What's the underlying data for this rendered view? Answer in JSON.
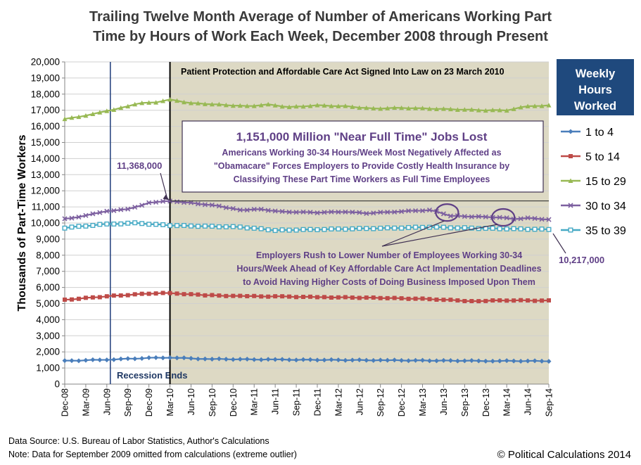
{
  "chart_data": {
    "type": "line",
    "title_line1": "Trailing Twelve Month Average of Number of Americans Working Part",
    "title_line2": "Time by Hours of Work Each Week, December 2008 through Present",
    "ylabel": "Thousands of Part-Time Workers",
    "ylim": [
      0,
      20000
    ],
    "ytick_step": 1000,
    "yticks": [
      "0",
      "1,000",
      "2,000",
      "3,000",
      "4,000",
      "5,000",
      "6,000",
      "7,000",
      "8,000",
      "9,000",
      "10,000",
      "11,000",
      "12,000",
      "13,000",
      "14,000",
      "15,000",
      "16,000",
      "17,000",
      "18,000",
      "19,000",
      "20,000"
    ],
    "xticks": [
      "Dec-08",
      "Mar-09",
      "Jun-09",
      "Sep-09",
      "Dec-09",
      "Mar-10",
      "Jun-10",
      "Sep-10",
      "Dec-10",
      "Mar-11",
      "Jun-11",
      "Sep-11",
      "Dec-11",
      "Mar-12",
      "Jun-12",
      "Sep-12",
      "Dec-12",
      "Mar-13",
      "Jun-13",
      "Sep-13",
      "Dec-13",
      "Mar-14",
      "Jun-14",
      "Sep-14"
    ],
    "months": 70,
    "legend_title": "Weekly Hours Worked",
    "series": [
      {
        "name": "1 to 4",
        "color": "#4a7ebb",
        "marker": "diamond",
        "anchors": [
          [
            0,
            1440
          ],
          [
            6,
            1520
          ],
          [
            12,
            1620
          ],
          [
            15,
            1650
          ],
          [
            20,
            1560
          ],
          [
            30,
            1520
          ],
          [
            45,
            1480
          ],
          [
            60,
            1440
          ],
          [
            69,
            1430
          ]
        ]
      },
      {
        "name": "5 to 14",
        "color": "#be4b48",
        "marker": "square",
        "anchors": [
          [
            0,
            5230
          ],
          [
            6,
            5450
          ],
          [
            12,
            5620
          ],
          [
            15,
            5650
          ],
          [
            20,
            5520
          ],
          [
            25,
            5460
          ],
          [
            30,
            5440
          ],
          [
            36,
            5400
          ],
          [
            45,
            5350
          ],
          [
            52,
            5280
          ],
          [
            58,
            5150
          ],
          [
            63,
            5200
          ],
          [
            69,
            5180
          ]
        ]
      },
      {
        "name": "15 to 29",
        "color": "#98b954",
        "marker": "triangle",
        "anchors": [
          [
            0,
            16450
          ],
          [
            4,
            16750
          ],
          [
            8,
            17150
          ],
          [
            11,
            17450
          ],
          [
            13,
            17500
          ],
          [
            15,
            17650
          ],
          [
            18,
            17450
          ],
          [
            22,
            17350
          ],
          [
            26,
            17250
          ],
          [
            29,
            17350
          ],
          [
            32,
            17200
          ],
          [
            36,
            17300
          ],
          [
            40,
            17250
          ],
          [
            44,
            17100
          ],
          [
            48,
            17150
          ],
          [
            52,
            17100
          ],
          [
            56,
            17050
          ],
          [
            60,
            17000
          ],
          [
            63,
            17000
          ],
          [
            66,
            17250
          ],
          [
            69,
            17300
          ]
        ]
      },
      {
        "name": "30 to 34",
        "color": "#7d60a0",
        "marker": "x",
        "anchors": [
          [
            0,
            10250
          ],
          [
            3,
            10450
          ],
          [
            6,
            10750
          ],
          [
            9,
            10850
          ],
          [
            12,
            11250
          ],
          [
            15,
            11368
          ],
          [
            18,
            11250
          ],
          [
            22,
            11050
          ],
          [
            25,
            10800
          ],
          [
            28,
            10850
          ],
          [
            31,
            10700
          ],
          [
            36,
            10650
          ],
          [
            40,
            10700
          ],
          [
            43,
            10600
          ],
          [
            47,
            10700
          ],
          [
            52,
            10800
          ],
          [
            53,
            10700
          ],
          [
            55,
            10450
          ],
          [
            58,
            10400
          ],
          [
            62,
            10350
          ],
          [
            64,
            10250
          ],
          [
            66,
            10300
          ],
          [
            68,
            10250
          ],
          [
            69,
            10217
          ]
        ]
      },
      {
        "name": "35 to 39",
        "color": "#46aac5",
        "marker": "open-square",
        "anchors": [
          [
            0,
            9700
          ],
          [
            5,
            9900
          ],
          [
            10,
            10000
          ],
          [
            15,
            9850
          ],
          [
            20,
            9800
          ],
          [
            25,
            9750
          ],
          [
            30,
            9550
          ],
          [
            36,
            9600
          ],
          [
            42,
            9650
          ],
          [
            48,
            9700
          ],
          [
            52,
            9750
          ],
          [
            56,
            9700
          ],
          [
            62,
            9650
          ],
          [
            69,
            9600
          ]
        ]
      }
    ],
    "recession_ends_label": "Recession Ends",
    "aca_signed_label": "Patient Protection and Affordable Care Act Signed Into Law on 23 March 2010",
    "callout_box": {
      "headline": "1,151,000 Million \"Near Full Time\" Jobs Lost",
      "body": [
        "Americans Working 30-34 Hours/Week Most Negatively Affected as",
        "\"Obamacare\" Forces Employers to Provide Costly Health Insurance by",
        "Classifying These Part Time Workers as Full Time Employees"
      ]
    },
    "peak_label": "11,368,000",
    "end_label": "10,217,000",
    "rush_annotation": [
      "Employers Rush to Lower Number of Employees Working 30-34",
      "Hours/Week Ahead of Key Affordable Care Act Implementation Deadlines",
      "to Avoid Having Higher Costs of Doing Business Imposed Upon Them"
    ]
  },
  "footer": {
    "source": "Data Source:  U.S. Bureau of Labor Statistics, Author's Calculations",
    "note": "Note: Data for September 2009 omitted from calculations (extreme outlier)",
    "copyright": "© Political Calculations 2014"
  }
}
